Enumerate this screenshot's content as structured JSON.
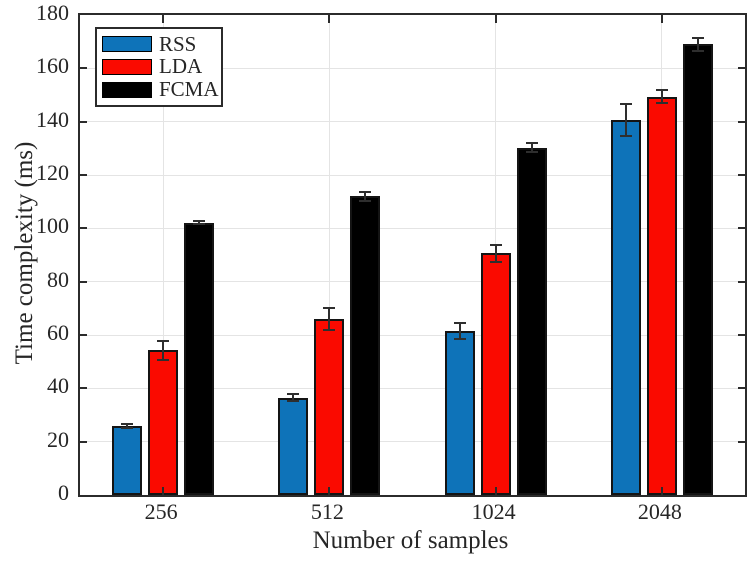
{
  "chart_data": {
    "type": "bar",
    "title": "",
    "xlabel": "Number of samples",
    "ylabel": "Time complexity (ms)",
    "categories": [
      "256",
      "512",
      "1024",
      "2048"
    ],
    "series": [
      {
        "name": "RSS",
        "color": "#0e73b9",
        "values": [
          26.0,
          36.5,
          61.5,
          140.5
        ],
        "errors": [
          0.8,
          1.3,
          3.0,
          6.0
        ]
      },
      {
        "name": "LDA",
        "color": "#fa0a00",
        "values": [
          54.2,
          66.0,
          90.7,
          149.4
        ],
        "errors": [
          3.7,
          4.0,
          3.2,
          2.5
        ]
      },
      {
        "name": "FCMA",
        "color": "#000000",
        "values": [
          102.1,
          112.0,
          130.3,
          169.0
        ],
        "errors": [
          0.6,
          1.8,
          1.6,
          2.5
        ]
      }
    ],
    "ylim": [
      0,
      180
    ],
    "yticks": [
      0,
      20,
      40,
      60,
      80,
      100,
      120,
      140,
      160,
      180
    ],
    "grid": true,
    "legend_position": "top-left",
    "axis_color": "#2b2b2b",
    "grid_color": "#e4e4e4",
    "error_color": "#2e2e2e"
  }
}
